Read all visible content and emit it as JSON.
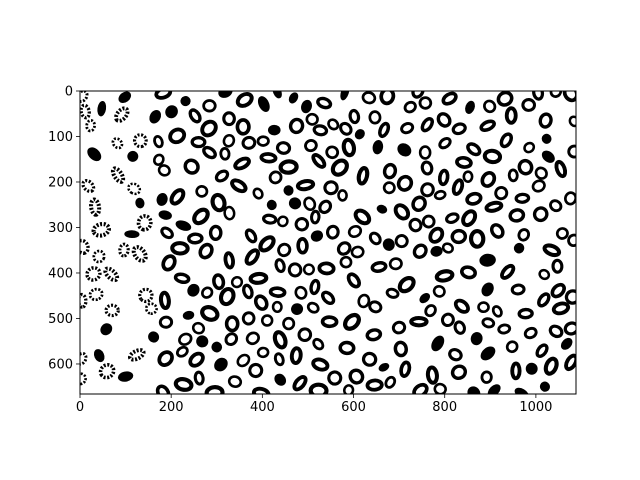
{
  "chart_data": {
    "type": "image",
    "title": "",
    "xlabel": "",
    "ylabel": "",
    "colormap": "binary (black cell rings on white background)",
    "image_width": 1088,
    "image_height": 666,
    "xlim": [
      0,
      1088
    ],
    "ylim": [
      666,
      0
    ],
    "y_inverted": true,
    "grid": false,
    "xticks": [
      0,
      200,
      400,
      600,
      800,
      1000
    ],
    "yticks": [
      0,
      100,
      200,
      300,
      400,
      500,
      600
    ],
    "xtick_labels": [
      "0",
      "200",
      "400",
      "600",
      "800",
      "1000"
    ],
    "ytick_labels": [
      "0",
      "100",
      "200",
      "300",
      "400",
      "500",
      "600"
    ],
    "content": "thresholded microscopy image of many ring-shaped (hollow elliptical) cells densely packed; density sparser toward left edge"
  },
  "colors": {
    "foreground": "#000000",
    "background": "#ffffff"
  }
}
